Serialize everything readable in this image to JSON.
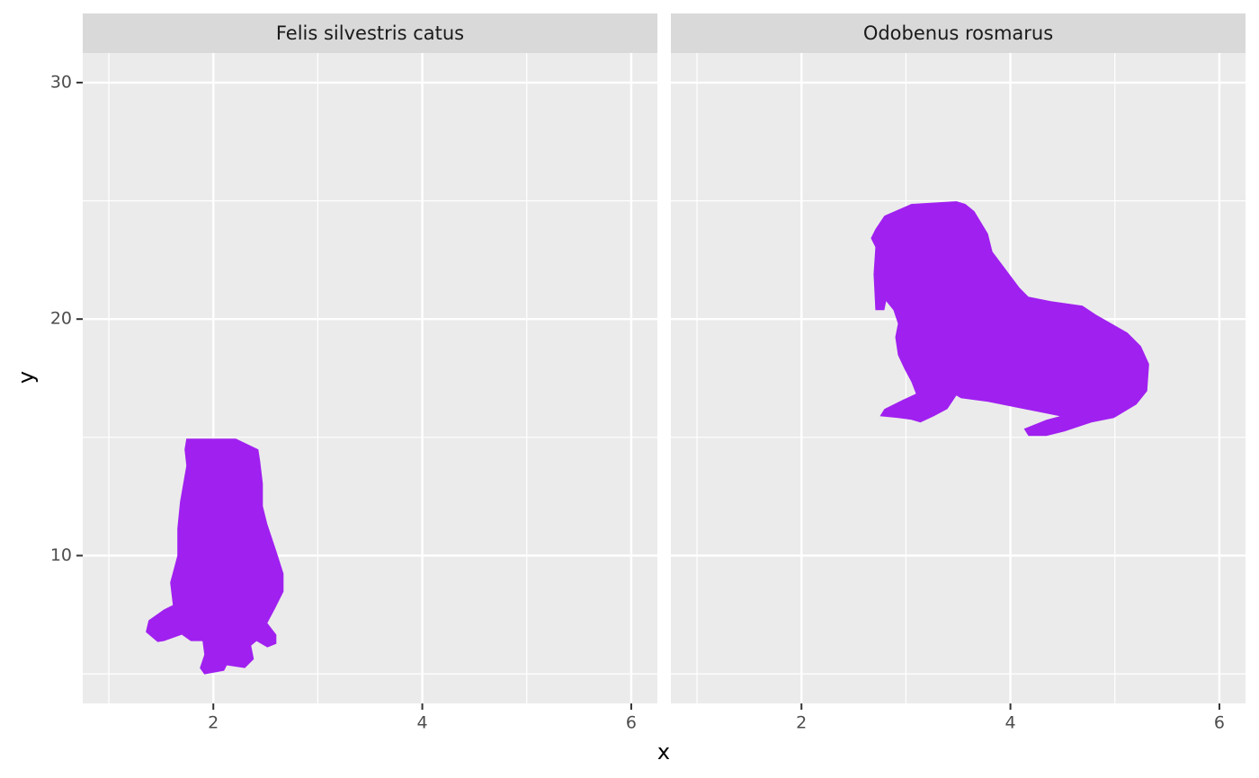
{
  "chart_data": {
    "type": "silhouette",
    "xlabel": "x",
    "ylabel": "y",
    "facets": [
      {
        "title": "Felis silvestris catus",
        "x": [
          2
        ],
        "y": [
          10
        ],
        "size": [
          10
        ],
        "color": "#a020f0"
      },
      {
        "title": "Odobenus rosmarus",
        "x": [
          4
        ],
        "y": [
          20
        ],
        "size": [
          10
        ],
        "color": "#a020f0"
      }
    ],
    "xlim": [
      0.75,
      6.25
    ],
    "xticks": [
      2,
      4,
      6
    ],
    "x_minor_ticks": [
      1,
      3,
      5
    ],
    "ylim": [
      3.75,
      31.25
    ],
    "yticks": [
      10,
      20,
      30
    ],
    "y_minor_ticks": [
      5,
      15,
      25
    ],
    "grid": true
  }
}
